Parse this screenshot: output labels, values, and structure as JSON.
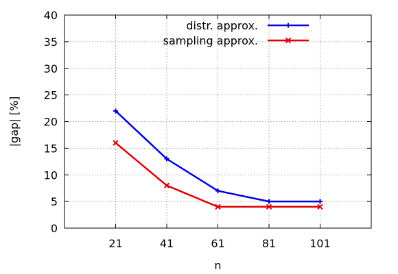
{
  "chart_data": {
    "type": "line",
    "title": "",
    "xlabel": "n",
    "ylabel": "|gap| [%]",
    "x": [
      21,
      41,
      61,
      81,
      101
    ],
    "xlim": [
      1,
      121
    ],
    "ylim": [
      0,
      40
    ],
    "x_ticks": [
      21,
      41,
      61,
      81,
      101
    ],
    "y_ticks": [
      0,
      5,
      10,
      15,
      20,
      25,
      30,
      35,
      40
    ],
    "grid": true,
    "legend_position": "top-right",
    "series": [
      {
        "name": "distr. approx.",
        "color": "#0000dd",
        "marker": "plus",
        "values": [
          22,
          13,
          7,
          5,
          5
        ]
      },
      {
        "name": "sampling approx.",
        "color": "#dd0000",
        "marker": "cross",
        "values": [
          16,
          8,
          4,
          4,
          4
        ]
      }
    ]
  }
}
